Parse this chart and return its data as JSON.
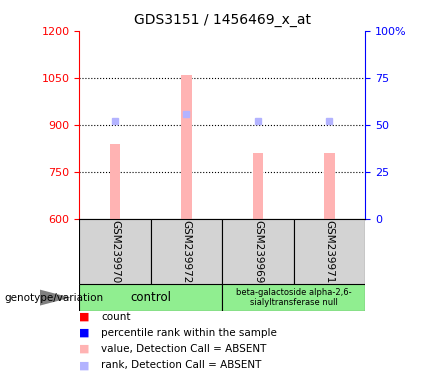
{
  "title": "GDS3151 / 1456469_x_at",
  "samples": [
    "GSM239970",
    "GSM239972",
    "GSM239969",
    "GSM239971"
  ],
  "bar_values": [
    840,
    1060,
    810,
    810
  ],
  "rank_values": [
    52,
    56,
    52,
    52
  ],
  "ylim_left": [
    600,
    1200
  ],
  "ylim_right": [
    0,
    100
  ],
  "yticks_left": [
    600,
    750,
    900,
    1050,
    1200
  ],
  "yticks_right": [
    0,
    25,
    50,
    75,
    100
  ],
  "bar_color_absent": "#ffb3b3",
  "rank_color_absent": "#b3b3ff",
  "left_axis_color": "#ff0000",
  "right_axis_color": "#0000ff",
  "sample_box_color": "#d3d3d3",
  "group1_label": "control",
  "group1_color": "#90ee90",
  "group2_label": "beta-galactoside alpha-2,6-\nsialyltransferase null",
  "group2_color": "#90ee90",
  "genotype_label": "genotype/variation",
  "legend_colors": [
    "#ff0000",
    "#0000ff",
    "#ffb3b3",
    "#b3b3ff"
  ],
  "legend_labels": [
    "count",
    "percentile rank within the sample",
    "value, Detection Call = ABSENT",
    "rank, Detection Call = ABSENT"
  ],
  "background_color": "#ffffff"
}
